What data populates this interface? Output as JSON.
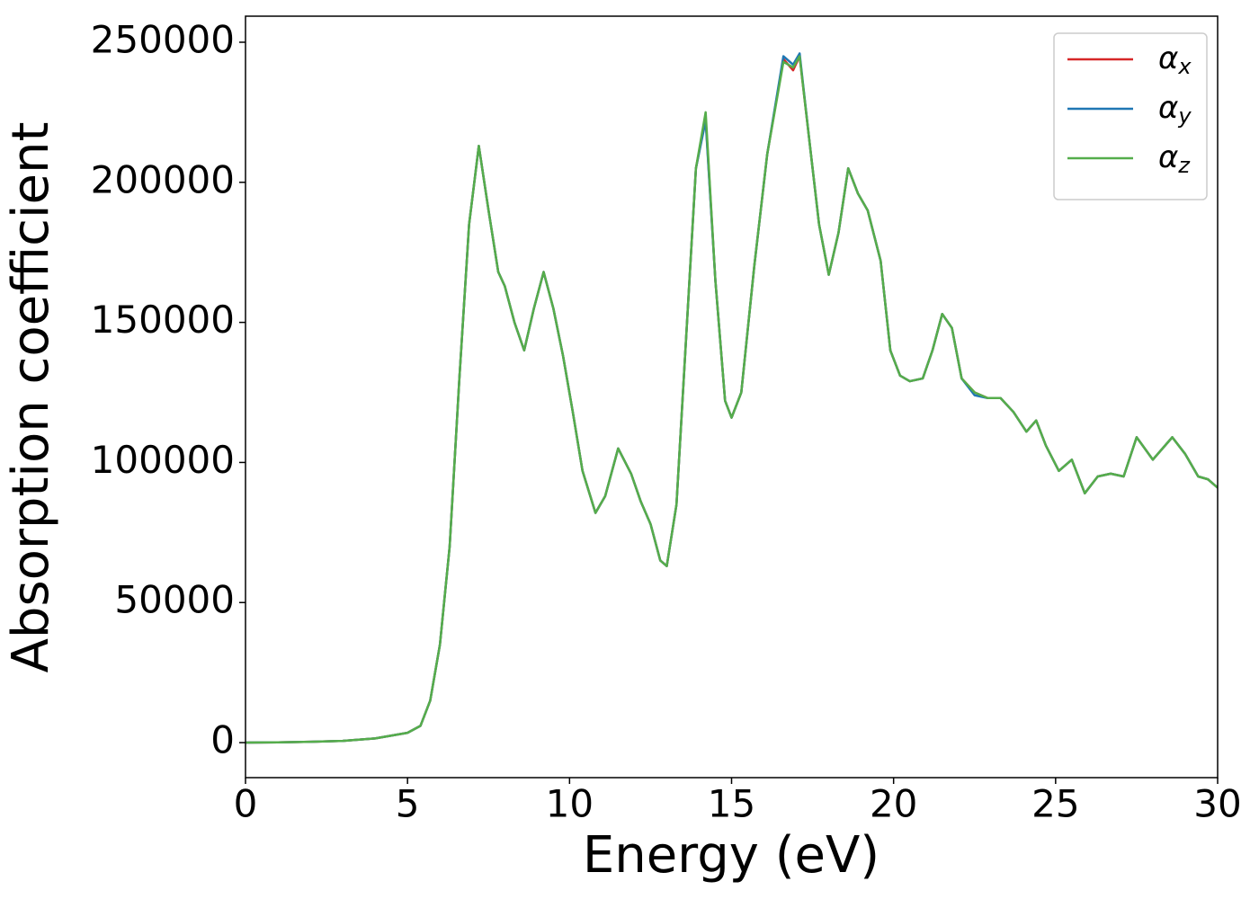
{
  "chart_data": {
    "type": "line",
    "xlabel": "Energy (eV)",
    "ylabel": "Absorption coefficient",
    "x": [
      0,
      1,
      2,
      3,
      4,
      4.5,
      5,
      5.4,
      5.7,
      6,
      6.3,
      6.6,
      6.9,
      7.2,
      7.5,
      7.8,
      8,
      8.3,
      8.6,
      8.9,
      9.2,
      9.5,
      9.8,
      10.1,
      10.4,
      10.8,
      11.1,
      11.5,
      11.9,
      12.2,
      12.5,
      12.8,
      13,
      13.3,
      13.6,
      13.9,
      14.2,
      14.5,
      14.8,
      15,
      15.3,
      15.7,
      16.1,
      16.6,
      16.9,
      17.1,
      17.4,
      17.7,
      18,
      18.3,
      18.6,
      18.9,
      19.2,
      19.6,
      19.9,
      20.2,
      20.5,
      20.9,
      21.2,
      21.5,
      21.8,
      22.1,
      22.5,
      22.9,
      23.3,
      23.7,
      24.1,
      24.4,
      24.7,
      25.1,
      25.5,
      25.9,
      26.3,
      26.7,
      27.1,
      27.5,
      28,
      28.6,
      29,
      29.4,
      29.7,
      30
    ],
    "series": [
      {
        "name": "αx",
        "color": "#d62728",
        "values": [
          0,
          100,
          300,
          600,
          1500,
          2500,
          3500,
          6000,
          15000,
          35000,
          70000,
          130000,
          185000,
          213000,
          190000,
          168000,
          163000,
          150000,
          140000,
          155000,
          168000,
          155000,
          138000,
          118000,
          97000,
          82000,
          88000,
          105000,
          96000,
          86000,
          78000,
          65000,
          63000,
          85000,
          145000,
          205000,
          223000,
          165000,
          122000,
          116000,
          125000,
          170000,
          210000,
          244000,
          240000,
          245000,
          215000,
          185000,
          167000,
          182000,
          205000,
          196000,
          190000,
          172000,
          140000,
          131000,
          129000,
          130000,
          140000,
          153000,
          148000,
          130000,
          125000,
          123000,
          123000,
          118000,
          111000,
          115000,
          106000,
          97000,
          101000,
          89000,
          95000,
          96000,
          95000,
          109000,
          101000,
          109000,
          103000,
          95000,
          94000,
          91000
        ]
      },
      {
        "name": "αy",
        "color": "#1f77b4",
        "values": [
          0,
          100,
          300,
          600,
          1500,
          2500,
          3500,
          6000,
          15000,
          35000,
          70000,
          130000,
          185000,
          213000,
          190000,
          168000,
          163000,
          150000,
          140000,
          155000,
          168000,
          155000,
          138000,
          118000,
          97000,
          82000,
          88000,
          105000,
          96000,
          86000,
          78000,
          65000,
          63000,
          85000,
          145000,
          205000,
          222000,
          165000,
          122000,
          116000,
          125000,
          170000,
          210000,
          245000,
          242000,
          246000,
          215000,
          185000,
          167000,
          182000,
          205000,
          196000,
          190000,
          172000,
          140000,
          131000,
          129000,
          130000,
          140000,
          153000,
          148000,
          130000,
          124000,
          123000,
          123000,
          118000,
          111000,
          115000,
          106000,
          97000,
          101000,
          89000,
          95000,
          96000,
          95000,
          109000,
          101000,
          109000,
          103000,
          95000,
          94000,
          91000
        ]
      },
      {
        "name": "αz",
        "color": "#55ad4b",
        "values": [
          0,
          100,
          300,
          600,
          1500,
          2500,
          3500,
          6000,
          15000,
          35000,
          70000,
          130000,
          185000,
          213000,
          190000,
          168000,
          163000,
          150000,
          140000,
          155000,
          168000,
          155000,
          138000,
          118000,
          97000,
          82000,
          88000,
          105000,
          96000,
          86000,
          78000,
          65000,
          63000,
          85000,
          145000,
          205000,
          225000,
          165000,
          122000,
          116000,
          125000,
          170000,
          210000,
          243000,
          241000,
          245000,
          215000,
          185000,
          167000,
          182000,
          205000,
          196000,
          190000,
          172000,
          140000,
          131000,
          129000,
          130000,
          140000,
          153000,
          148000,
          130000,
          125000,
          123000,
          123000,
          118000,
          111000,
          115000,
          106000,
          97000,
          101000,
          89000,
          95000,
          96000,
          95000,
          109000,
          101000,
          109000,
          103000,
          95000,
          94000,
          91000
        ]
      }
    ],
    "xlim": [
      0,
      30
    ],
    "ylim": [
      -12500,
      259300
    ],
    "xticks": [
      0,
      5,
      10,
      15,
      20,
      25,
      30
    ],
    "yticks": [
      0,
      50000,
      100000,
      150000,
      200000,
      250000
    ],
    "grid": false,
    "legend": "upper right"
  }
}
